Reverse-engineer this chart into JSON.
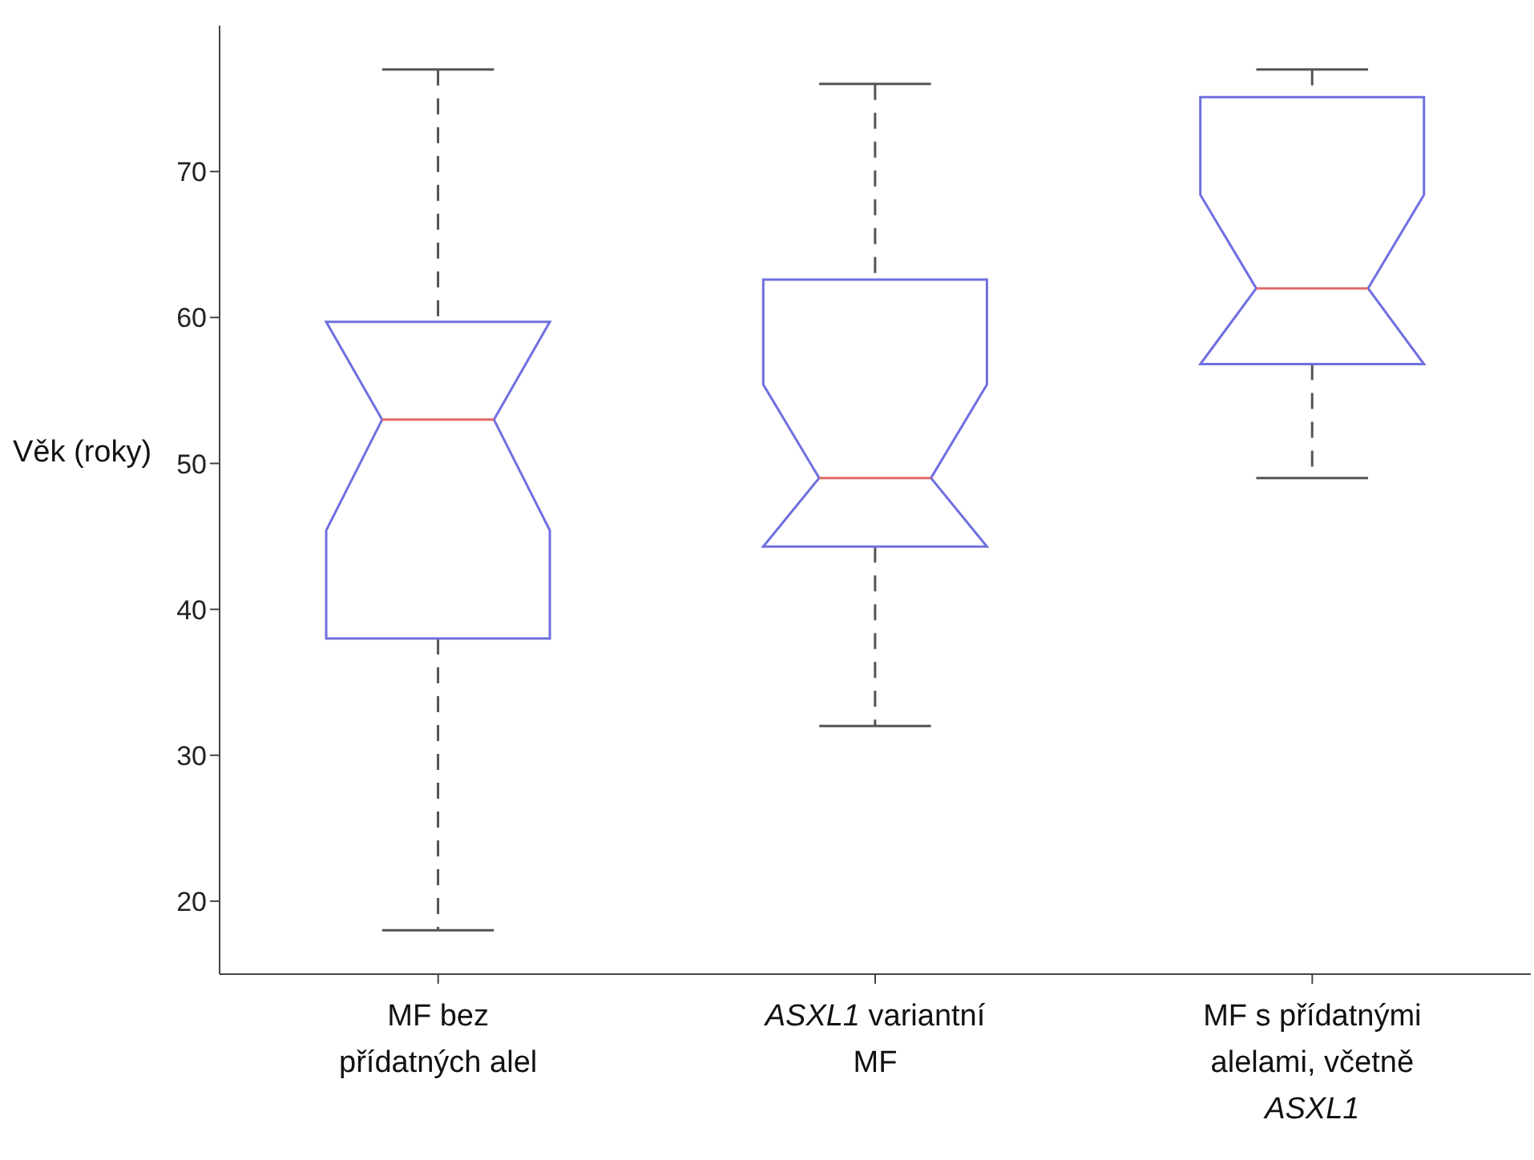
{
  "chart_data": {
    "type": "box",
    "ylabel": "Věk (roky)",
    "categories": [
      "MF bez přídatných alel",
      "ASXL1 variantní MF",
      "MF s přídatnými alelami, včetně ASXL1"
    ],
    "boxes": [
      {
        "low": 18,
        "q1": 38,
        "median": 53,
        "q3": 59.7,
        "high": 77
      },
      {
        "low": 32,
        "q1": 44.3,
        "median": 49,
        "q3": 62.6,
        "high": 76
      },
      {
        "low": 49,
        "q1": 56.8,
        "median": 62,
        "q3": 75.1,
        "high": 77
      }
    ],
    "color": "#6f6fe0",
    "ylim": [
      15,
      80
    ],
    "yticks": [
      20,
      30,
      40,
      50,
      60,
      70
    ]
  }
}
